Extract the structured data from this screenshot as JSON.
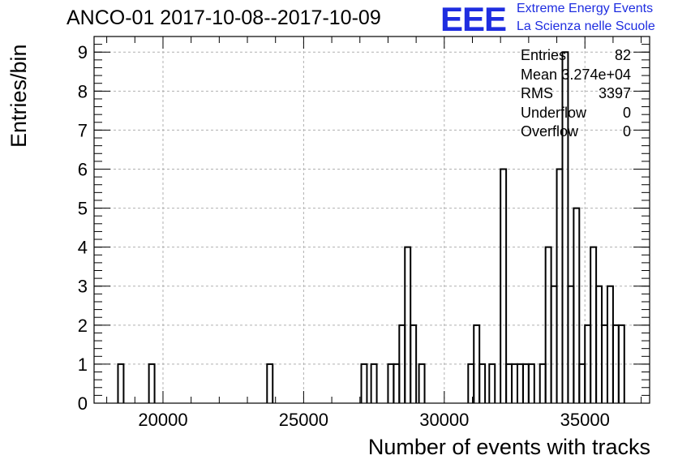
{
  "header": {
    "title": "ANCO-01 2017-10-08--2017-10-09",
    "logo_text": "EEE",
    "logo_line1": "Extreme Energy Events",
    "logo_line2": "La Scienza nelle Scuole"
  },
  "stats": [
    {
      "label": "Entries",
      "value": "82"
    },
    {
      "label": "Mean",
      "value": "3.274e+04"
    },
    {
      "label": "RMS",
      "value": "3397"
    },
    {
      "label": "Underflow",
      "value": "0"
    },
    {
      "label": "Overflow",
      "value": "0"
    }
  ],
  "colors": {
    "line": "#000000",
    "grid": "#b0b0b0",
    "logo": "#1e2de0"
  },
  "chart_data": {
    "type": "histogram",
    "title": "ANCO-01 2017-10-08--2017-10-09",
    "xlabel": "Number of events with tracks",
    "ylabel": "Entries/bin",
    "xlim": [
      17550,
      37300
    ],
    "ylim": [
      0,
      9.4
    ],
    "bin_width": 200,
    "x_ticks": [
      20000,
      25000,
      30000,
      35000
    ],
    "y_ticks": [
      0,
      1,
      2,
      3,
      4,
      5,
      6,
      7,
      8,
      9
    ],
    "grid": true,
    "bins": [
      {
        "x": 18400,
        "y": 1
      },
      {
        "x": 19500,
        "y": 1
      },
      {
        "x": 23700,
        "y": 1
      },
      {
        "x": 27050,
        "y": 1
      },
      {
        "x": 27400,
        "y": 1
      },
      {
        "x": 28000,
        "y": 1
      },
      {
        "x": 28200,
        "y": 1
      },
      {
        "x": 28400,
        "y": 2
      },
      {
        "x": 28600,
        "y": 4
      },
      {
        "x": 28800,
        "y": 2
      },
      {
        "x": 29100,
        "y": 1
      },
      {
        "x": 30850,
        "y": 1
      },
      {
        "x": 31050,
        "y": 2
      },
      {
        "x": 31250,
        "y": 1
      },
      {
        "x": 31600,
        "y": 1
      },
      {
        "x": 32000,
        "y": 6
      },
      {
        "x": 32200,
        "y": 1
      },
      {
        "x": 32400,
        "y": 1
      },
      {
        "x": 32600,
        "y": 1
      },
      {
        "x": 32800,
        "y": 1
      },
      {
        "x": 33000,
        "y": 1
      },
      {
        "x": 33400,
        "y": 1
      },
      {
        "x": 33600,
        "y": 4
      },
      {
        "x": 33800,
        "y": 3
      },
      {
        "x": 34000,
        "y": 6
      },
      {
        "x": 34200,
        "y": 9
      },
      {
        "x": 34400,
        "y": 3
      },
      {
        "x": 34600,
        "y": 5
      },
      {
        "x": 34800,
        "y": 1
      },
      {
        "x": 35000,
        "y": 2
      },
      {
        "x": 35200,
        "y": 4
      },
      {
        "x": 35400,
        "y": 3
      },
      {
        "x": 35600,
        "y": 2
      },
      {
        "x": 35800,
        "y": 3
      },
      {
        "x": 36000,
        "y": 2
      },
      {
        "x": 36200,
        "y": 2
      }
    ]
  }
}
